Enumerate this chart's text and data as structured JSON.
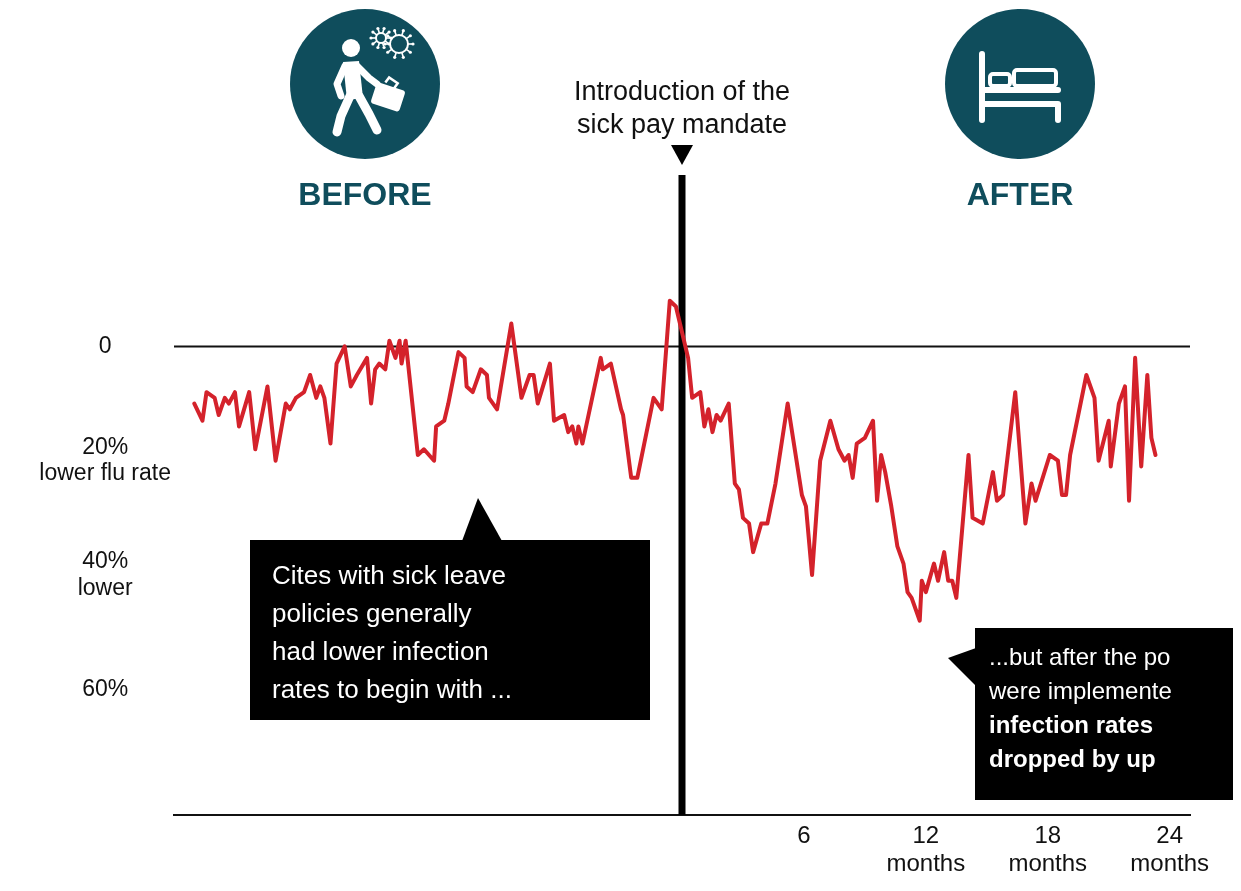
{
  "chart_data": {
    "type": "line",
    "x": [
      -24.0,
      -23.6,
      -23.4,
      -23.0,
      -22.8,
      -22.5,
      -22.3,
      -22.0,
      -21.8,
      -21.3,
      -21.0,
      -20.4,
      -20.0,
      -19.5,
      -19.3,
      -19.0,
      -18.6,
      -18.3,
      -18.0,
      -17.8,
      -17.6,
      -17.3,
      -17.0,
      -16.6,
      -16.3,
      -16.0,
      -15.5,
      -15.3,
      -15.1,
      -14.9,
      -14.6,
      -14.4,
      -14.1,
      -13.9,
      -13.8,
      -13.6,
      -13.0,
      -12.7,
      -12.2,
      -12.1,
      -11.7,
      -11.5,
      -11.0,
      -10.7,
      -10.6,
      -10.3,
      -9.9,
      -9.6,
      -9.5,
      -9.1,
      -8.4,
      -7.9,
      -7.5,
      -7.3,
      -7.1,
      -6.5,
      -6.3,
      -5.8,
      -5.6,
      -5.4,
      -5.2,
      -5.1,
      -4.9,
      -4.0,
      -3.9,
      -3.5,
      -3.0,
      -2.9,
      -2.5,
      -2.2,
      -1.4,
      -1.0,
      -0.6,
      -0.3,
      0.3,
      0.5,
      0.9,
      1.1,
      1.3,
      1.5,
      1.7,
      1.9,
      2.3,
      2.6,
      2.8,
      3.0,
      3.3,
      3.5,
      3.9,
      4.2,
      4.6,
      5.2,
      5.9,
      6.1,
      6.4,
      6.8,
      7.3,
      7.7,
      8.0,
      8.2,
      8.4,
      8.6,
      9.0,
      9.4,
      9.6,
      9.8,
      10.0,
      10.3,
      10.6,
      10.9,
      11.1,
      11.3,
      11.7,
      11.8,
      12.0,
      12.4,
      12.6,
      12.9,
      13.1,
      13.3,
      13.5,
      14.1,
      14.3,
      14.8,
      15.3,
      15.5,
      15.8,
      16.4,
      16.9,
      17.2,
      17.4,
      18.1,
      18.5,
      18.7,
      18.9,
      19.1,
      19.9,
      20.3,
      20.5,
      21.0,
      21.1,
      21.5,
      21.8,
      22.0,
      22.3,
      22.6,
      22.9,
      23.1,
      23.3
    ],
    "series": [
      {
        "color": "#d4222b",
        "values": [
          -10,
          -13,
          -8,
          -9,
          -12,
          -9,
          -10,
          -8,
          -14,
          -8,
          -18,
          -7,
          -20,
          -10,
          -11,
          -9,
          -8,
          -5,
          -9,
          -7,
          -9,
          -17,
          -3,
          0,
          -7,
          -5,
          -2,
          -10,
          -4,
          -3,
          -4,
          1,
          -2,
          1,
          -3,
          1,
          -19,
          -18,
          -20,
          -14,
          -13,
          -10,
          -1,
          -2,
          -7,
          -8,
          -4,
          -5,
          -9,
          -11,
          4,
          -9,
          -5,
          -5,
          -10,
          -3,
          -13,
          -12,
          -15,
          -14,
          -17,
          -14,
          -17,
          -2,
          -4,
          -3,
          -11,
          -12,
          -23,
          -23,
          -9,
          -11,
          8,
          7,
          -2,
          -9,
          -8,
          -14,
          -11,
          -15,
          -12,
          -13,
          -10,
          -24,
          -25,
          -30,
          -31,
          -36,
          -31,
          -31,
          -24,
          -10,
          -26,
          -28,
          -40,
          -20,
          -13,
          -18,
          -20,
          -19,
          -23,
          -17,
          -16,
          -13,
          -27,
          -19,
          -22,
          -28,
          -35,
          -38,
          -43,
          -44,
          -48,
          -41,
          -43,
          -38,
          -41,
          -36,
          -41,
          -41,
          -44,
          -19,
          -30,
          -31,
          -22,
          -27,
          -26,
          -8,
          -31,
          -24,
          -27,
          -19,
          -20,
          -26,
          -26,
          -19,
          -5,
          -9,
          -20,
          -13,
          -21,
          -10,
          -7,
          -27,
          -2,
          -21,
          -5,
          -16,
          -19
        ]
      }
    ],
    "xlim": [
      -25,
      25
    ],
    "xticks": [
      6,
      {
        "value": 12,
        "label": "12\nmonths"
      },
      {
        "value": 18,
        "label": "18\nmonths"
      },
      {
        "value": 24,
        "label": "24\nmonths"
      }
    ],
    "ylim": [
      -82,
      30
    ],
    "yticks": [
      0,
      {
        "value": -20,
        "label": "20%\nlower flu rate"
      },
      {
        "value": -40,
        "label": "40%\nlower"
      },
      {
        "value": -60,
        "label": "60%"
      }
    ],
    "ref_lines": [
      {
        "axis": "y",
        "value": 0,
        "color": "#111111"
      },
      {
        "axis": "x",
        "value": 0,
        "label": "Introduction of the\nsick pay mandate",
        "color": "#000000"
      }
    ],
    "annotations": [
      "BEFORE",
      "AFTER",
      "Cites with sick leave\npolicies generally\nhad lower infection\nrates to begin with ...",
      "...but after the po\nwere implemente",
      "infection rates\ndropped by up"
    ]
  }
}
